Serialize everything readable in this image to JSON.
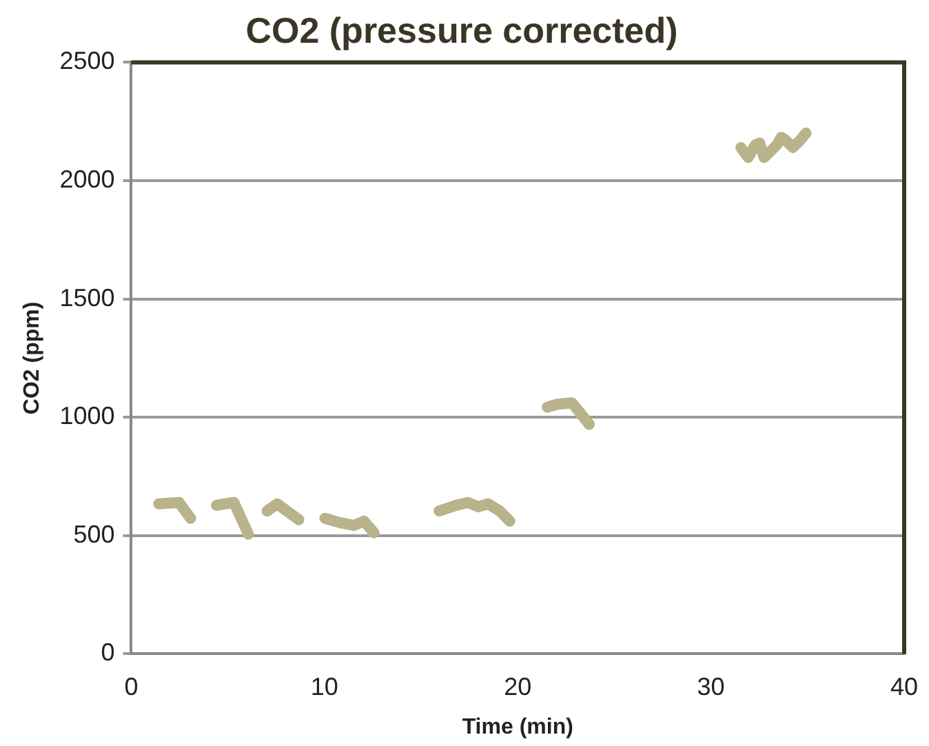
{
  "chart_data": {
    "type": "line",
    "title": "CO2 (pressure corrected)",
    "xlabel": "Time (min)",
    "ylabel": "CO2 (ppm)",
    "xlim": [
      0,
      40
    ],
    "xticks": [
      0,
      10,
      20,
      30,
      40
    ],
    "ylim": [
      0,
      2500
    ],
    "yticks": [
      0,
      500,
      1000,
      1500,
      2000,
      2500
    ],
    "grid": "y",
    "legend": false,
    "marker": "none",
    "line_style": "solid",
    "series": [
      {
        "color": "#b8b38a",
        "x": [
          1.42,
          2.47,
          3.07,
          null,
          4.41,
          5.31,
          6.06,
          null,
          7.03,
          7.55,
          8.67,
          null,
          10.02,
          10.77,
          11.51,
          12.04,
          12.56,
          null,
          15.93,
          16.82,
          17.42,
          17.94,
          18.47,
          19.07,
          19.59,
          null,
          21.53,
          22.06,
          22.8,
          23.18,
          23.7,
          null,
          31.55,
          31.93,
          32.3,
          32.52,
          32.75,
          33.05,
          33.42,
          33.64,
          33.87,
          34.24,
          34.62,
          34.92
        ],
        "values": [
          634,
          640,
          573,
          null,
          628,
          640,
          506,
          null,
          604,
          634,
          567,
          null,
          573,
          555,
          543,
          561,
          512,
          null,
          604,
          628,
          640,
          622,
          634,
          604,
          561,
          null,
          1043,
          1055,
          1061,
          1024,
          970,
          null,
          2140,
          2098,
          2152,
          2159,
          2098,
          2122,
          2152,
          2183,
          2171,
          2140,
          2171,
          2201
        ]
      }
    ]
  }
}
